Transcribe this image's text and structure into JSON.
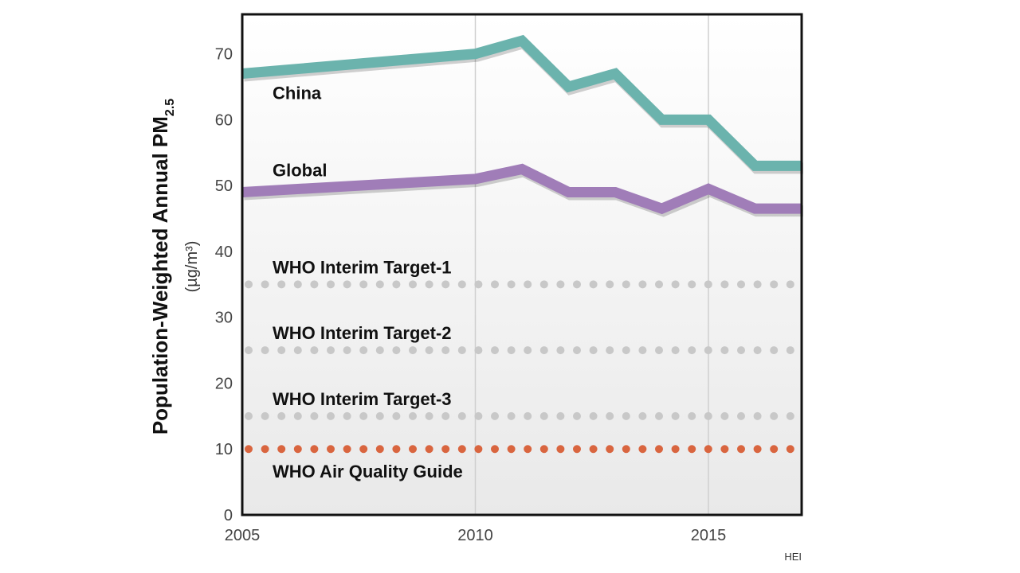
{
  "chart_data": {
    "type": "line",
    "title": "",
    "ylabel": "Population-Weighted Annual PM",
    "ylabel_subscript": "2.5",
    "ylabel_units": "(µg/m³)",
    "xlabel": "",
    "xlim": [
      2005,
      2017
    ],
    "ylim": [
      0,
      76
    ],
    "x_ticks": [
      "2005",
      "2010",
      "2015"
    ],
    "y_ticks": [
      "0",
      "10",
      "20",
      "30",
      "40",
      "50",
      "60",
      "70"
    ],
    "x_gridlines": [
      2010,
      2015
    ],
    "credit": "HEI",
    "series": [
      {
        "name": "China",
        "color": "#6bb3ad",
        "x": [
          2005,
          2010,
          2011,
          2012,
          2013,
          2014,
          2015,
          2016,
          2017
        ],
        "values": [
          67,
          70,
          72,
          65,
          67,
          60,
          60,
          53,
          53
        ]
      },
      {
        "name": "Global",
        "color": "#a07db8",
        "x": [
          2005,
          2010,
          2011,
          2012,
          2013,
          2014,
          2015,
          2016,
          2017
        ],
        "values": [
          49,
          51,
          52.5,
          49,
          49,
          46.5,
          49.5,
          46.5,
          46.5
        ]
      }
    ],
    "reference_lines": [
      {
        "name": "WHO Interim Target-1",
        "value": 35,
        "color": "#c8c8c8",
        "label_position": "above"
      },
      {
        "name": "WHO Interim Target-2",
        "value": 25,
        "color": "#c8c8c8",
        "label_position": "above"
      },
      {
        "name": "WHO Interim Target-3",
        "value": 15,
        "color": "#c8c8c8",
        "label_position": "above"
      },
      {
        "name": "WHO Air Quality Guide",
        "value": 10,
        "color": "#d9653f",
        "label_position": "below"
      }
    ]
  }
}
